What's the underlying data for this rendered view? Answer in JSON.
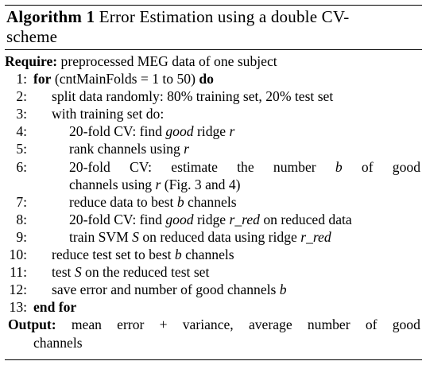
{
  "caption": {
    "label": "Algorithm 1",
    "title_line1": "Error Estimation using a double CV-",
    "title_line2": "scheme"
  },
  "require": {
    "keyword": "Require:",
    "text": "preprocessed MEG data of one subject"
  },
  "lines": [
    {
      "num": "1:",
      "kw": "for",
      "text": "(cntMainFolds = 1 to 50)",
      "kw2": "do"
    },
    {
      "num": "2:",
      "text": "split data randomly: 80% training set, 20% test set"
    },
    {
      "num": "3:",
      "text": "with training set do:"
    },
    {
      "num": "4:",
      "pre": "20-fold CV: find ",
      "em": "good",
      "mid": " ridge ",
      "var": "r"
    },
    {
      "num": "5:",
      "pre": "rank channels using ",
      "var": "r"
    },
    {
      "num": "6:",
      "line1_words": [
        "20-fold",
        "CV:",
        "estimate",
        "the",
        "number",
        "b",
        "of",
        "good"
      ],
      "line2_pre": "channels using ",
      "line2_var": "r",
      "line2_post": " (Fig. 3 and 4)"
    },
    {
      "num": "7:",
      "pre": "reduce data to best ",
      "var": "b",
      "post": " channels"
    },
    {
      "num": "8:",
      "pre": "20-fold CV: find ",
      "em": "good",
      "mid": " ridge ",
      "var": "r_red",
      "post": " on reduced data"
    },
    {
      "num": "9:",
      "pre": "train SVM ",
      "var": "S",
      "mid": " on reduced data using ridge ",
      "var2": "r_red"
    },
    {
      "num": "10:",
      "pre": "reduce test set to best ",
      "var": "b",
      "post": " channels"
    },
    {
      "num": "11:",
      "pre": "test ",
      "var": "S",
      "post": " on the reduced test set"
    },
    {
      "num": "12:",
      "pre": "save error and number of good channels ",
      "var": "b"
    },
    {
      "num": "13:",
      "kw": "end for"
    }
  ],
  "output": {
    "keyword": "Output:",
    "line1_words": [
      "mean",
      "error",
      "+",
      "variance,",
      "average",
      "number",
      "of",
      "good"
    ],
    "line2": "channels"
  }
}
